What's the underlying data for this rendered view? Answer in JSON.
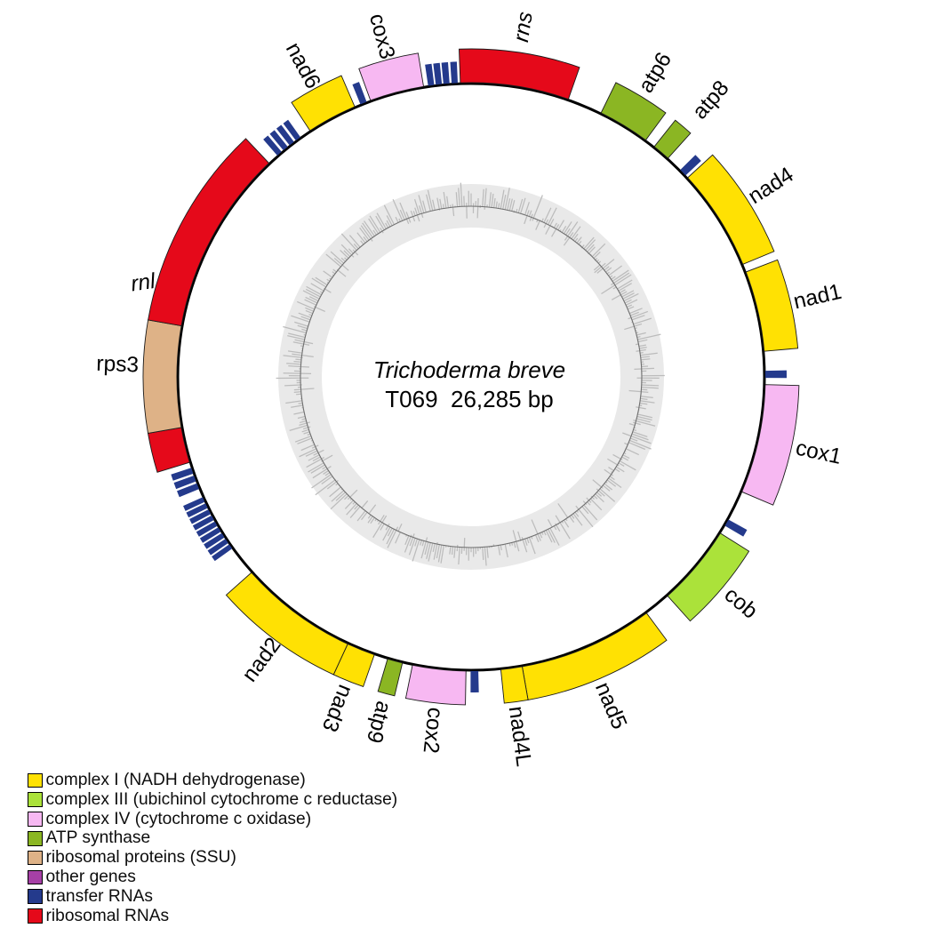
{
  "center_text": {
    "species": "Trichoderma breve",
    "size_line": "T069  26,285 bp"
  },
  "colors": {
    "complex_i": "#ffe103",
    "complex_iii": "#abe23a",
    "complex_iv": "#f7b8f2",
    "atp_synthase": "#8bb623",
    "rps": "#deb287",
    "other": "#a640a6",
    "trna": "#243a8c",
    "rrna": "#e5091a",
    "circle": "#000000"
  },
  "legend": [
    {
      "label": "complex I (NADH dehydrogenase)",
      "type": "complex_i"
    },
    {
      "label": "complex III (ubichinol cytochrome c reductase)",
      "type": "complex_iii"
    },
    {
      "label": "complex IV (cytochrome c oxidase)",
      "type": "complex_iv"
    },
    {
      "label": "ATP synthase",
      "type": "atp_synthase"
    },
    {
      "label": "ribosomal proteins (SSU)",
      "type": "rps"
    },
    {
      "label": "other genes",
      "type": "other"
    },
    {
      "label": "transfer RNAs",
      "type": "trna"
    },
    {
      "label": "ribosomal RNAs",
      "type": "rrna"
    }
  ],
  "gc_ring": {
    "seed": 20,
    "bars": 470,
    "band_color": "#e9e9e9",
    "bar_color": "#bcbcbc",
    "baseline_color": "#6f6f6f"
  },
  "genome": {
    "features": [
      {
        "name": "rns",
        "type": "rrna",
        "start_deg": -2.1,
        "end_deg": 19.3,
        "label": {
          "text": "rns",
          "angle": 8.5,
          "radius": 398,
          "italic": true
        }
      },
      {
        "name": "atp6",
        "type": "atp_synthase",
        "start_deg": 26.2,
        "end_deg": 36.4,
        "label": {
          "text": "atp6",
          "angle": 31.2,
          "radius": 400
        }
      },
      {
        "name": "atp8",
        "type": "atp_synthase",
        "start_deg": 38.5,
        "end_deg": 42.0,
        "label": {
          "text": "atp8",
          "angle": 40.9,
          "radius": 412
        }
      },
      {
        "name": "tRNA",
        "type": "trna",
        "start_deg": 45.3,
        "end_deg": 46.8
      },
      {
        "name": "nad4",
        "type": "complex_i",
        "start_deg": 47.4,
        "end_deg": 67.5,
        "label": {
          "text": "nad4",
          "angle": 57.5,
          "radius": 400
        }
      },
      {
        "name": "nad1",
        "type": "complex_i",
        "start_deg": 69.1,
        "end_deg": 85.0,
        "label": {
          "text": "nad1",
          "angle": 77.0,
          "radius": 400
        }
      },
      {
        "name": "tRNA",
        "type": "trna",
        "start_deg": 88.8,
        "end_deg": 90.2
      },
      {
        "name": "cox1",
        "type": "complex_iv",
        "start_deg": 91.5,
        "end_deg": 113.0,
        "label": {
          "text": "cox1",
          "angle": 102.3,
          "radius": 400
        }
      },
      {
        "name": "tRNA",
        "type": "trna",
        "start_deg": 119.0,
        "end_deg": 120.4
      },
      {
        "name": "cob",
        "type": "complex_iii",
        "start_deg": 122.1,
        "end_deg": 138.1,
        "label": {
          "text": "cob",
          "angle": 130.0,
          "radius": 396
        }
      },
      {
        "name": "nad5",
        "type": "complex_i",
        "start_deg": 143.4,
        "end_deg": 170.0,
        "label": {
          "text": "nad5",
          "angle": 157.0,
          "radius": 402
        }
      },
      {
        "name": "nad4L",
        "type": "complex_i",
        "start_deg": 170.0,
        "end_deg": 174.2,
        "label": {
          "text": "nad4L",
          "angle": 172.3,
          "radius": 408
        }
      },
      {
        "name": "tRNA",
        "type": "trna",
        "start_deg": 178.6,
        "end_deg": 180.1
      },
      {
        "name": "cox2",
        "type": "complex_iv",
        "start_deg": 181.0,
        "end_deg": 191.5,
        "label": {
          "text": "cox2",
          "angle": 186.2,
          "radius": 400
        }
      },
      {
        "name": "atp9",
        "type": "atp_synthase",
        "start_deg": 193.5,
        "end_deg": 196.5,
        "label": {
          "text": "atp9",
          "angle": 195.0,
          "radius": 402
        }
      },
      {
        "name": "nad3",
        "type": "complex_i",
        "start_deg": 199.2,
        "end_deg": 204.8,
        "label": {
          "text": "nad3",
          "angle": 202.0,
          "radius": 402
        }
      },
      {
        "name": "nad2",
        "type": "complex_i",
        "start_deg": 204.8,
        "end_deg": 228.3,
        "label": {
          "text": "nad2",
          "angle": 216.5,
          "radius": 396
        }
      },
      {
        "name": "tRNA",
        "type": "trna",
        "start_deg": 234.3,
        "end_deg": 235.3
      },
      {
        "name": "tRNA",
        "type": "trna",
        "start_deg": 235.62,
        "end_deg": 236.62
      },
      {
        "name": "tRNA",
        "type": "trna",
        "start_deg": 236.94,
        "end_deg": 237.94
      },
      {
        "name": "tRNA",
        "type": "trna",
        "start_deg": 238.26,
        "end_deg": 239.26
      },
      {
        "name": "tRNA",
        "type": "trna",
        "start_deg": 239.58,
        "end_deg": 240.58
      },
      {
        "name": "tRNA",
        "type": "trna",
        "start_deg": 240.9,
        "end_deg": 241.9
      },
      {
        "name": "tRNA",
        "type": "trna",
        "start_deg": 242.22,
        "end_deg": 243.22
      },
      {
        "name": "tRNA",
        "type": "trna",
        "start_deg": 243.54,
        "end_deg": 244.54
      },
      {
        "name": "tRNA",
        "type": "trna",
        "start_deg": 244.86,
        "end_deg": 245.86
      },
      {
        "name": "tRNA",
        "type": "trna",
        "start_deg": 247.6,
        "end_deg": 248.8
      },
      {
        "name": "tRNA",
        "type": "trna",
        "start_deg": 249.2,
        "end_deg": 250.4
      },
      {
        "name": "tRNA",
        "type": "trna",
        "start_deg": 250.8,
        "end_deg": 252.0
      },
      {
        "name": "rnl part",
        "type": "rrna",
        "start_deg": 253.1,
        "end_deg": 260.1
      },
      {
        "name": "rps3",
        "type": "rps",
        "start_deg": 260.1,
        "end_deg": 280.0,
        "label": {
          "text": "rps3",
          "angle": 272.0,
          "radius": 398
        }
      },
      {
        "name": "rnl",
        "type": "rrna",
        "start_deg": 280.0,
        "end_deg": 316.6,
        "label": {
          "text": "rnl",
          "angle": 286.0,
          "radius": 384,
          "italic": true
        }
      },
      {
        "name": "tRNA",
        "type": "trna",
        "start_deg": 318.8,
        "end_deg": 319.9
      },
      {
        "name": "tRNA",
        "type": "trna",
        "start_deg": 320.35,
        "end_deg": 321.45
      },
      {
        "name": "tRNA",
        "type": "trna",
        "start_deg": 321.9,
        "end_deg": 323.0
      },
      {
        "name": "tRNA",
        "type": "trna",
        "start_deg": 323.45,
        "end_deg": 324.55
      },
      {
        "name": "nad6",
        "type": "complex_i",
        "start_deg": 326.8,
        "end_deg": 336.7,
        "label": {
          "text": "nad6",
          "angle": 331.6,
          "radius": 398
        }
      },
      {
        "name": "tRNA",
        "type": "trna",
        "start_deg": 337.9,
        "end_deg": 339.2
      },
      {
        "name": "cox3",
        "type": "complex_iv",
        "start_deg": 340.0,
        "end_deg": 350.7,
        "label": {
          "text": "cox3",
          "angle": 345.3,
          "radius": 396
        }
      },
      {
        "name": "tRNA",
        "type": "trna",
        "start_deg": 351.6,
        "end_deg": 352.8
      },
      {
        "name": "tRNA",
        "type": "trna",
        "start_deg": 353.1,
        "end_deg": 354.3
      },
      {
        "name": "tRNA",
        "type": "trna",
        "start_deg": 354.6,
        "end_deg": 355.8
      },
      {
        "name": "tRNA",
        "type": "trna",
        "start_deg": 356.2,
        "end_deg": 357.4
      }
    ]
  }
}
